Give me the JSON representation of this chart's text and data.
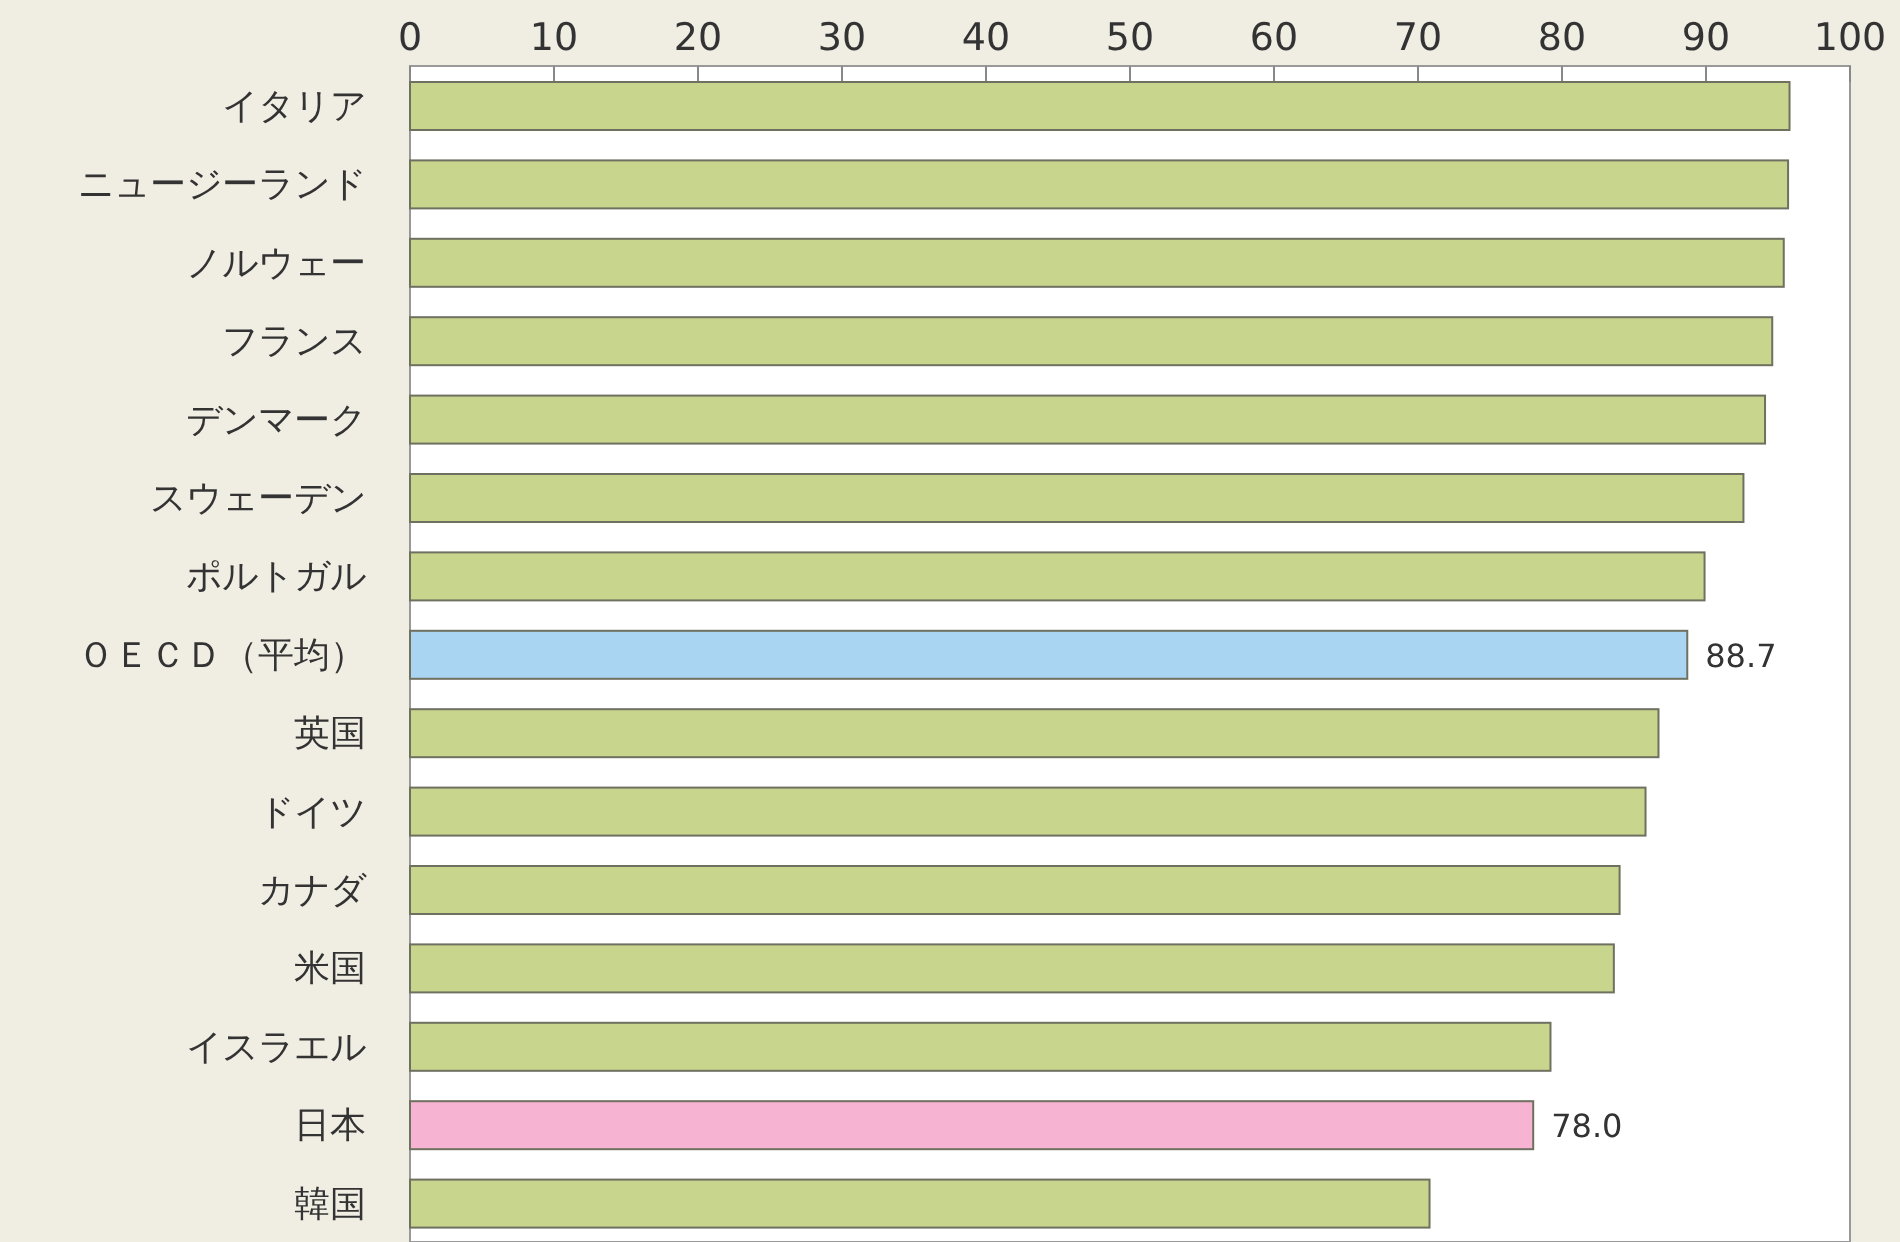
{
  "chart_data": {
    "type": "bar",
    "orientation": "horizontal",
    "categories": [
      "イタリア",
      "ニュージーランド",
      "ノルウェー",
      "フランス",
      "デンマーク",
      "スウェーデン",
      "ポルトガル",
      "ＯＥＣＤ（平均）",
      "英国",
      "ドイツ",
      "カナダ",
      "米国",
      "イスラエル",
      "日本",
      "韓国"
    ],
    "values": [
      95.8,
      95.7,
      95.4,
      94.6,
      94.1,
      92.6,
      89.9,
      88.7,
      86.7,
      85.8,
      84.0,
      83.6,
      79.2,
      78.0,
      70.8
    ],
    "colors": [
      "#c8d58c",
      "#c8d58c",
      "#c8d58c",
      "#c8d58c",
      "#c8d58c",
      "#c8d58c",
      "#c8d58c",
      "#a9d5f2",
      "#c8d58c",
      "#c8d58c",
      "#c8d58c",
      "#c8d58c",
      "#c8d58c",
      "#f7b3d2",
      "#c8d58c"
    ],
    "value_labels": [
      null,
      null,
      null,
      null,
      null,
      null,
      null,
      "88.7",
      null,
      null,
      null,
      null,
      null,
      "78.0",
      null
    ],
    "xlim": [
      0,
      100
    ],
    "xticks": [
      0,
      10,
      20,
      30,
      40,
      50,
      60,
      70,
      80,
      90,
      100
    ]
  }
}
